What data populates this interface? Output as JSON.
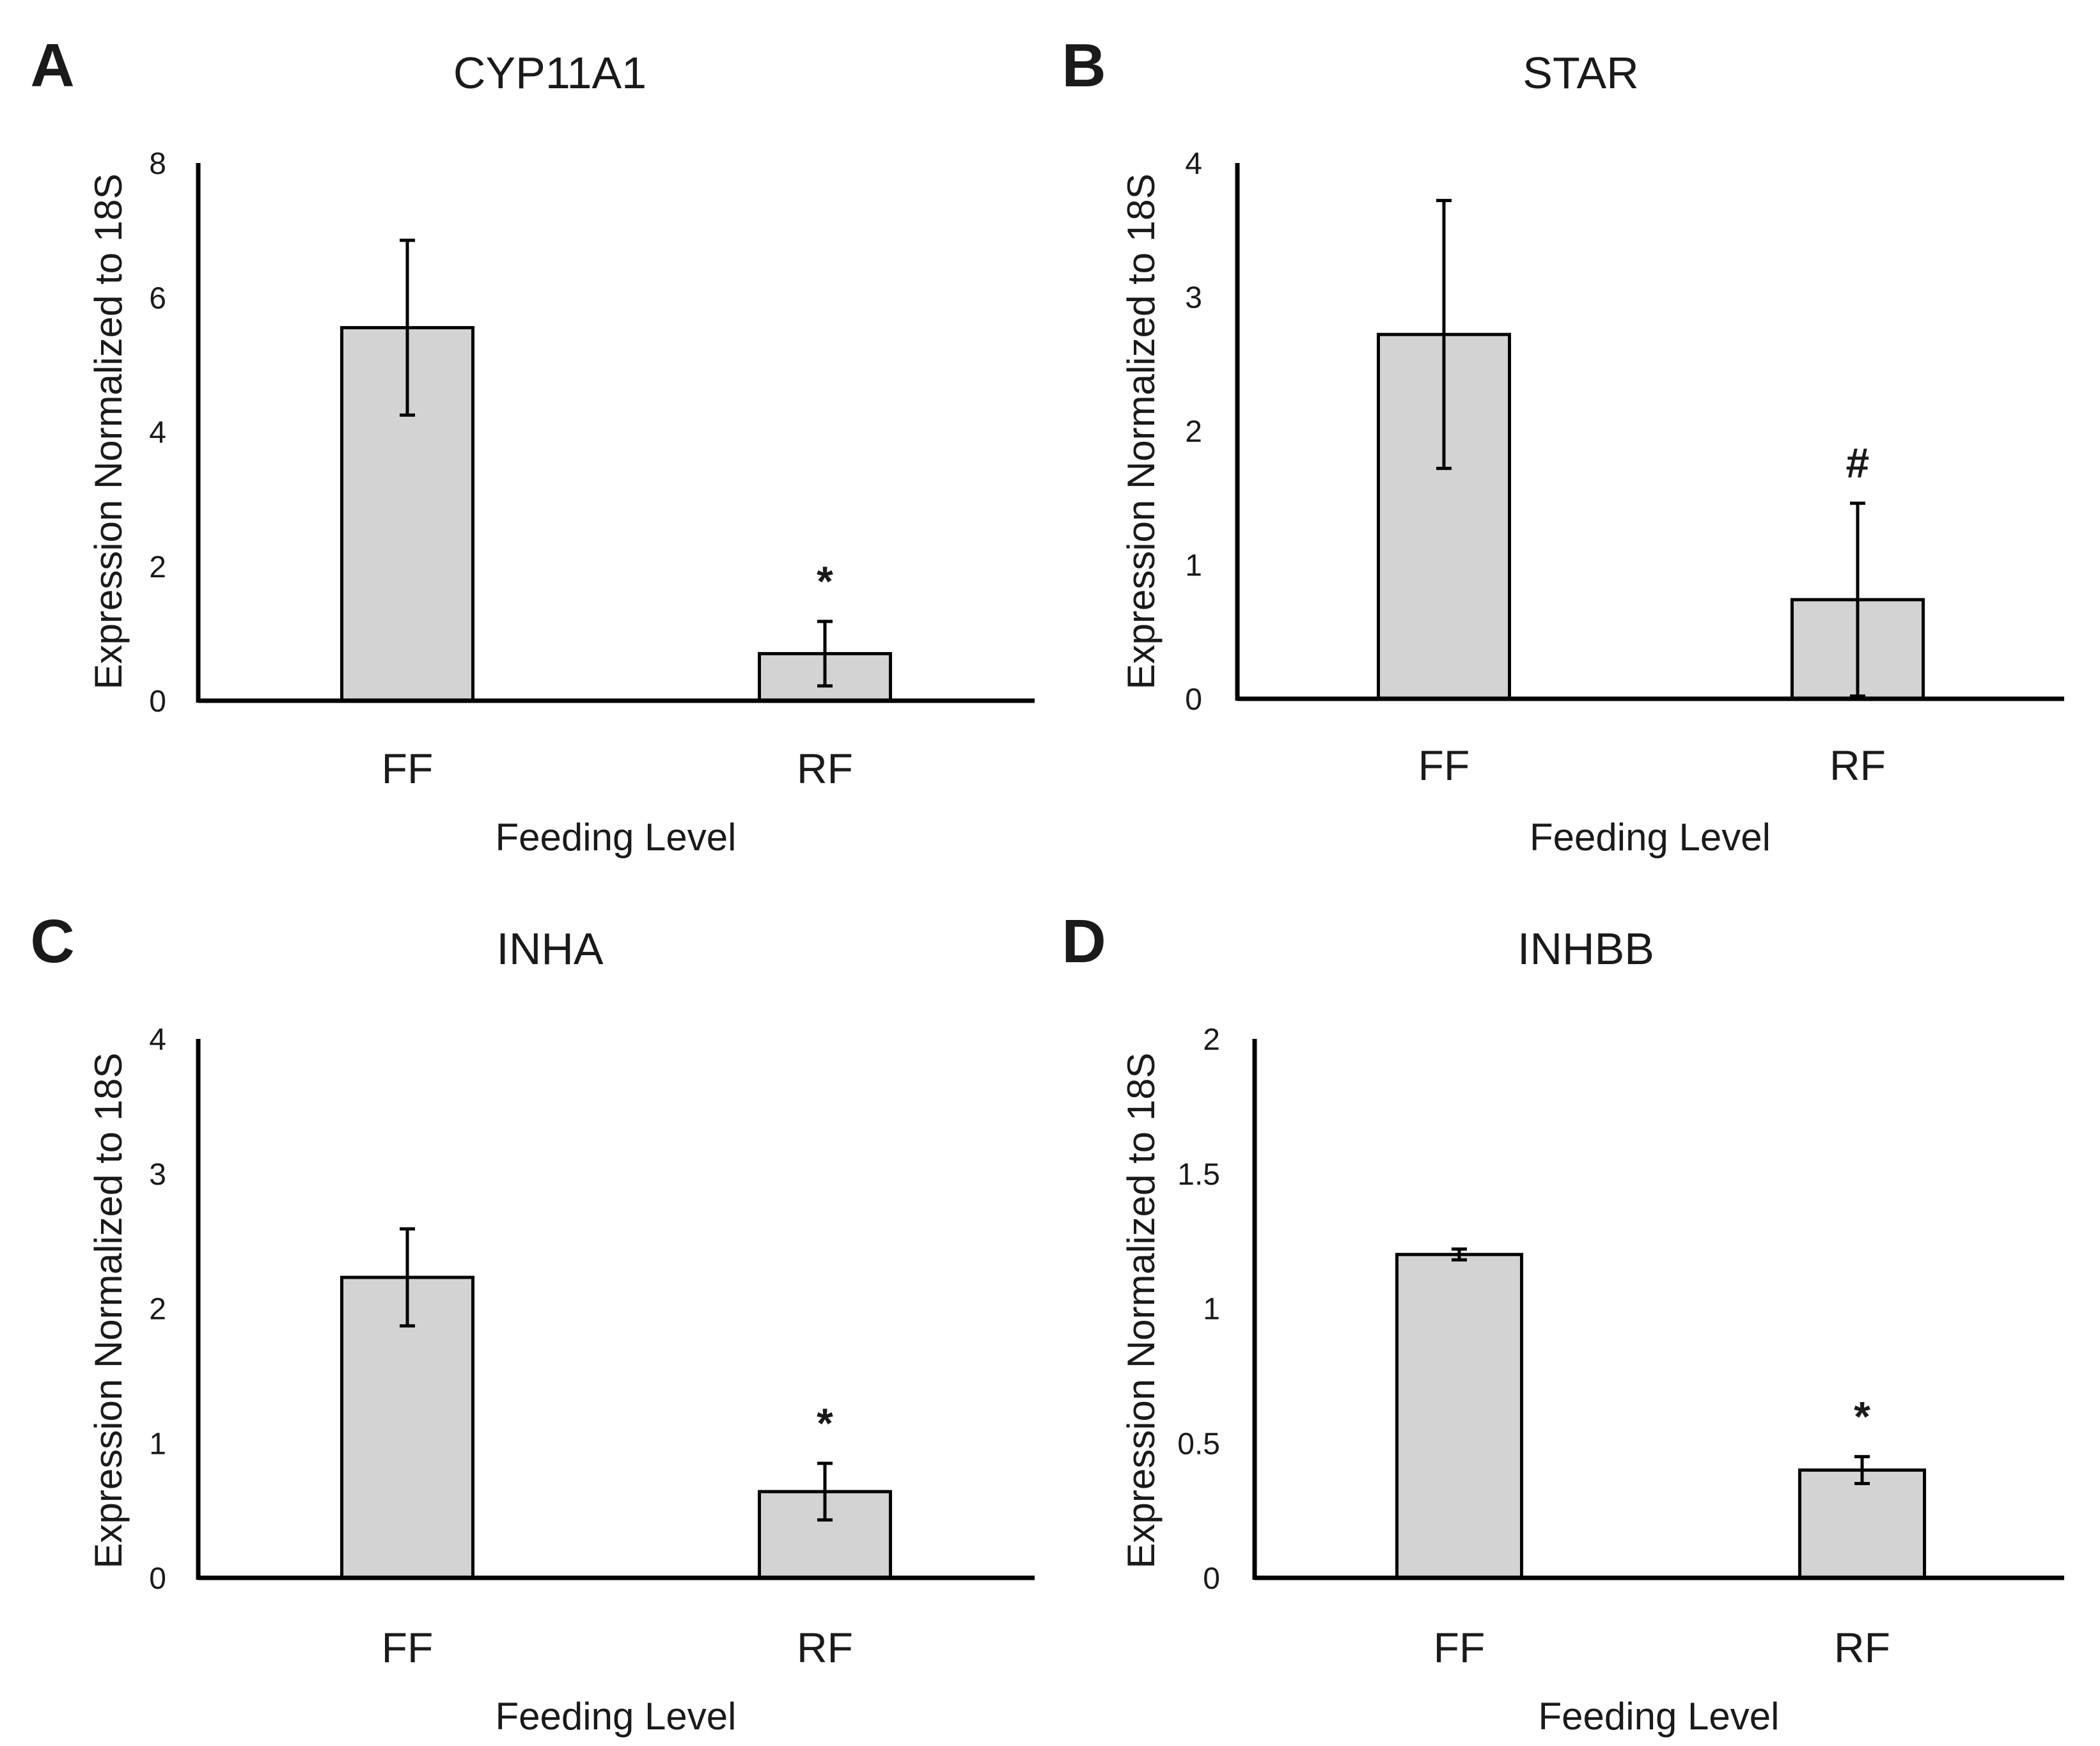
{
  "chart_data": [
    {
      "panel": "A",
      "type": "bar",
      "title": "CYP11A1",
      "xlabel": "Feeding Level",
      "ylabel": "Expression Normalized to 18S",
      "categories": [
        "FF",
        "RF"
      ],
      "values": [
        5.55,
        0.7
      ],
      "errors": [
        1.3,
        0.48
      ],
      "significance": [
        "",
        "*"
      ],
      "ylim": [
        0,
        8
      ],
      "yticks": [
        0,
        2,
        4,
        6,
        8
      ],
      "ytick_labels": [
        "0",
        "2",
        "4",
        "6",
        "8"
      ],
      "grid": false
    },
    {
      "panel": "B",
      "type": "bar",
      "title": "STAR",
      "xlabel": "Feeding Level",
      "ylabel": "Expression Normalized to 18S",
      "categories": [
        "FF",
        "RF"
      ],
      "values": [
        2.72,
        0.74
      ],
      "errors": [
        1.0,
        0.72
      ],
      "significance": [
        "",
        "#"
      ],
      "ylim": [
        0,
        4
      ],
      "yticks": [
        0,
        1,
        2,
        3,
        4
      ],
      "ytick_labels": [
        "0",
        "1",
        "2",
        "3",
        "4"
      ],
      "grid": false
    },
    {
      "panel": "C",
      "type": "bar",
      "title": "INHA",
      "xlabel": "Feeding Level",
      "ylabel": "Expression Normalized to 18S",
      "categories": [
        "FF",
        "RF"
      ],
      "values": [
        2.23,
        0.64
      ],
      "errors": [
        0.36,
        0.21
      ],
      "significance": [
        "",
        "*"
      ],
      "ylim": [
        0,
        4
      ],
      "yticks": [
        0,
        1,
        2,
        3,
        4
      ],
      "ytick_labels": [
        "0",
        "1",
        "2",
        "3",
        "4"
      ],
      "grid": false
    },
    {
      "panel": "D",
      "type": "bar",
      "title": "INHBB",
      "xlabel": "Feeding Level",
      "ylabel": "Expression Normalized to 18S",
      "categories": [
        "FF",
        "RF"
      ],
      "values": [
        1.2,
        0.4
      ],
      "errors": [
        0.02,
        0.05
      ],
      "significance": [
        "",
        "*"
      ],
      "ylim": [
        0,
        2
      ],
      "yticks": [
        0,
        0.5,
        1,
        1.5,
        2
      ],
      "ytick_labels": [
        "0",
        "0.5",
        "1",
        "1.5",
        "2"
      ],
      "grid": false
    }
  ],
  "colors": {
    "bar_fill": "#d3d3d3",
    "bar_stroke": "#000000",
    "axis": "#000000"
  }
}
